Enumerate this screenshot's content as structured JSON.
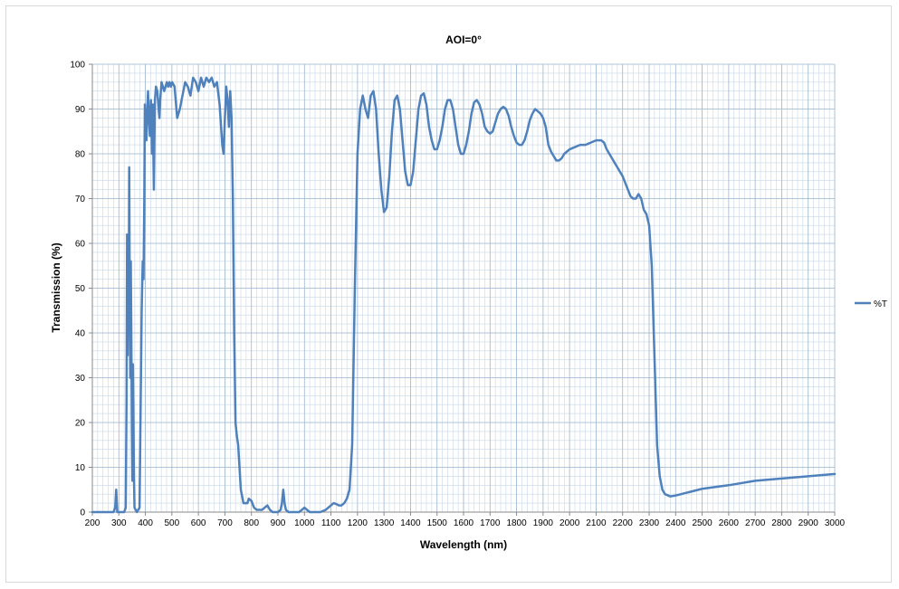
{
  "chart_data": {
    "type": "line",
    "title": "AOI=0°",
    "xlabel": "Wavelength (nm)",
    "ylabel": "Transmission (%)",
    "xlim": [
      200,
      3000
    ],
    "ylim": [
      0,
      100
    ],
    "x_ticks": [
      200,
      300,
      400,
      500,
      600,
      700,
      800,
      900,
      1000,
      1100,
      1200,
      1300,
      1400,
      1500,
      1600,
      1700,
      1800,
      1900,
      2000,
      2100,
      2200,
      2300,
      2400,
      2500,
      2600,
      2700,
      2800,
      2900,
      3000
    ],
    "y_ticks": [
      0,
      10,
      20,
      30,
      40,
      50,
      60,
      70,
      80,
      90,
      100
    ],
    "grid": true,
    "minor_x_grid_step": 20,
    "minor_y_grid_step": 2,
    "legend": "right",
    "series": [
      {
        "name": "%T",
        "color": "#4f81bd",
        "points": [
          [
            200,
            0
          ],
          [
            280,
            0
          ],
          [
            286,
            1
          ],
          [
            290,
            5
          ],
          [
            294,
            0
          ],
          [
            320,
            0
          ],
          [
            326,
            1
          ],
          [
            329,
            25
          ],
          [
            331,
            62
          ],
          [
            333,
            35
          ],
          [
            335,
            60
          ],
          [
            337,
            40
          ],
          [
            339,
            77
          ],
          [
            341,
            50
          ],
          [
            343,
            30
          ],
          [
            345,
            56
          ],
          [
            347,
            40
          ],
          [
            349,
            20
          ],
          [
            351,
            7
          ],
          [
            353,
            33
          ],
          [
            355,
            20
          ],
          [
            357,
            8
          ],
          [
            359,
            1
          ],
          [
            368,
            0
          ],
          [
            378,
            1
          ],
          [
            386,
            45
          ],
          [
            390,
            56
          ],
          [
            393,
            52
          ],
          [
            396,
            70
          ],
          [
            398,
            91
          ],
          [
            400,
            84
          ],
          [
            402,
            88
          ],
          [
            404,
            83
          ],
          [
            407,
            90
          ],
          [
            410,
            94
          ],
          [
            413,
            88
          ],
          [
            417,
            84
          ],
          [
            421,
            92
          ],
          [
            425,
            80
          ],
          [
            428,
            91
          ],
          [
            432,
            72
          ],
          [
            436,
            92
          ],
          [
            440,
            95
          ],
          [
            445,
            94
          ],
          [
            450,
            90
          ],
          [
            453,
            88
          ],
          [
            456,
            92
          ],
          [
            461,
            96
          ],
          [
            466,
            95
          ],
          [
            471,
            94
          ],
          [
            476,
            95
          ],
          [
            481,
            96
          ],
          [
            486,
            95
          ],
          [
            491,
            96
          ],
          [
            496,
            95
          ],
          [
            501,
            96
          ],
          [
            510,
            95
          ],
          [
            520,
            88
          ],
          [
            530,
            90
          ],
          [
            540,
            93
          ],
          [
            550,
            96
          ],
          [
            560,
            95
          ],
          [
            570,
            93
          ],
          [
            580,
            97
          ],
          [
            590,
            96
          ],
          [
            600,
            94
          ],
          [
            610,
            97
          ],
          [
            620,
            95
          ],
          [
            630,
            97
          ],
          [
            640,
            96
          ],
          [
            650,
            97
          ],
          [
            660,
            95
          ],
          [
            670,
            96
          ],
          [
            680,
            91
          ],
          [
            690,
            82
          ],
          [
            695,
            80
          ],
          [
            700,
            88
          ],
          [
            705,
            95
          ],
          [
            710,
            92
          ],
          [
            715,
            86
          ],
          [
            720,
            94
          ],
          [
            725,
            88
          ],
          [
            730,
            70
          ],
          [
            735,
            40
          ],
          [
            740,
            20
          ],
          [
            745,
            17
          ],
          [
            750,
            15
          ],
          [
            755,
            10
          ],
          [
            760,
            5
          ],
          [
            770,
            2
          ],
          [
            785,
            2
          ],
          [
            790,
            3
          ],
          [
            800,
            2.5
          ],
          [
            810,
            1
          ],
          [
            820,
            0.5
          ],
          [
            840,
            0.5
          ],
          [
            850,
            1
          ],
          [
            860,
            1.5
          ],
          [
            870,
            0.5
          ],
          [
            880,
            0
          ],
          [
            900,
            0
          ],
          [
            910,
            0.5
          ],
          [
            915,
            2
          ],
          [
            920,
            5
          ],
          [
            925,
            2
          ],
          [
            930,
            0.5
          ],
          [
            940,
            0
          ],
          [
            980,
            0
          ],
          [
            990,
            0.5
          ],
          [
            1000,
            1
          ],
          [
            1010,
            0.5
          ],
          [
            1020,
            0
          ],
          [
            1060,
            0
          ],
          [
            1080,
            0.5
          ],
          [
            1090,
            1
          ],
          [
            1100,
            1.5
          ],
          [
            1110,
            2
          ],
          [
            1120,
            1.8
          ],
          [
            1130,
            1.5
          ],
          [
            1140,
            1.5
          ],
          [
            1150,
            2
          ],
          [
            1160,
            3
          ],
          [
            1170,
            5
          ],
          [
            1180,
            15
          ],
          [
            1190,
            50
          ],
          [
            1200,
            80
          ],
          [
            1210,
            90
          ],
          [
            1220,
            93
          ],
          [
            1230,
            90
          ],
          [
            1240,
            88
          ],
          [
            1250,
            93
          ],
          [
            1260,
            94
          ],
          [
            1270,
            90
          ],
          [
            1280,
            80
          ],
          [
            1290,
            72
          ],
          [
            1300,
            67
          ],
          [
            1310,
            68
          ],
          [
            1320,
            75
          ],
          [
            1330,
            85
          ],
          [
            1340,
            92
          ],
          [
            1350,
            93
          ],
          [
            1360,
            90
          ],
          [
            1370,
            83
          ],
          [
            1380,
            76
          ],
          [
            1390,
            73
          ],
          [
            1400,
            73
          ],
          [
            1410,
            76
          ],
          [
            1420,
            83
          ],
          [
            1430,
            90
          ],
          [
            1440,
            93
          ],
          [
            1450,
            93.5
          ],
          [
            1460,
            91
          ],
          [
            1470,
            86
          ],
          [
            1480,
            83
          ],
          [
            1490,
            81
          ],
          [
            1500,
            81
          ],
          [
            1510,
            83
          ],
          [
            1520,
            86
          ],
          [
            1530,
            90
          ],
          [
            1540,
            92
          ],
          [
            1550,
            92
          ],
          [
            1560,
            90
          ],
          [
            1570,
            86
          ],
          [
            1580,
            82
          ],
          [
            1590,
            80
          ],
          [
            1600,
            80
          ],
          [
            1610,
            82
          ],
          [
            1620,
            85
          ],
          [
            1630,
            89
          ],
          [
            1640,
            91.5
          ],
          [
            1650,
            92
          ],
          [
            1660,
            91
          ],
          [
            1670,
            89
          ],
          [
            1680,
            86
          ],
          [
            1690,
            85
          ],
          [
            1700,
            84.5
          ],
          [
            1710,
            85
          ],
          [
            1720,
            87
          ],
          [
            1730,
            89
          ],
          [
            1740,
            90
          ],
          [
            1750,
            90.5
          ],
          [
            1760,
            90
          ],
          [
            1770,
            88.5
          ],
          [
            1780,
            86
          ],
          [
            1790,
            84
          ],
          [
            1800,
            82.5
          ],
          [
            1810,
            82
          ],
          [
            1820,
            82
          ],
          [
            1830,
            83
          ],
          [
            1840,
            85
          ],
          [
            1850,
            87.5
          ],
          [
            1860,
            89
          ],
          [
            1870,
            90
          ],
          [
            1880,
            89.5
          ],
          [
            1890,
            89
          ],
          [
            1900,
            88
          ],
          [
            1910,
            86
          ],
          [
            1920,
            82
          ],
          [
            1930,
            80.5
          ],
          [
            1940,
            79.5
          ],
          [
            1950,
            78.5
          ],
          [
            1960,
            78.5
          ],
          [
            1970,
            79
          ],
          [
            1980,
            80
          ],
          [
            2000,
            81
          ],
          [
            2020,
            81.5
          ],
          [
            2040,
            82
          ],
          [
            2060,
            82
          ],
          [
            2080,
            82.5
          ],
          [
            2100,
            83
          ],
          [
            2120,
            83
          ],
          [
            2130,
            82.5
          ],
          [
            2140,
            81
          ],
          [
            2160,
            79
          ],
          [
            2180,
            77
          ],
          [
            2200,
            75
          ],
          [
            2210,
            73.5
          ],
          [
            2220,
            72
          ],
          [
            2230,
            70.5
          ],
          [
            2240,
            70
          ],
          [
            2250,
            70
          ],
          [
            2260,
            71
          ],
          [
            2270,
            70
          ],
          [
            2280,
            67.5
          ],
          [
            2290,
            66.5
          ],
          [
            2300,
            64
          ],
          [
            2310,
            55
          ],
          [
            2320,
            35
          ],
          [
            2330,
            15
          ],
          [
            2340,
            8
          ],
          [
            2350,
            5
          ],
          [
            2360,
            4
          ],
          [
            2380,
            3.5
          ],
          [
            2400,
            3.7
          ],
          [
            2420,
            4
          ],
          [
            2440,
            4.3
          ],
          [
            2460,
            4.6
          ],
          [
            2480,
            4.9
          ],
          [
            2500,
            5.2
          ],
          [
            2600,
            6
          ],
          [
            2700,
            7
          ],
          [
            2800,
            7.5
          ],
          [
            2900,
            8
          ],
          [
            3000,
            8.5
          ]
        ]
      }
    ]
  }
}
